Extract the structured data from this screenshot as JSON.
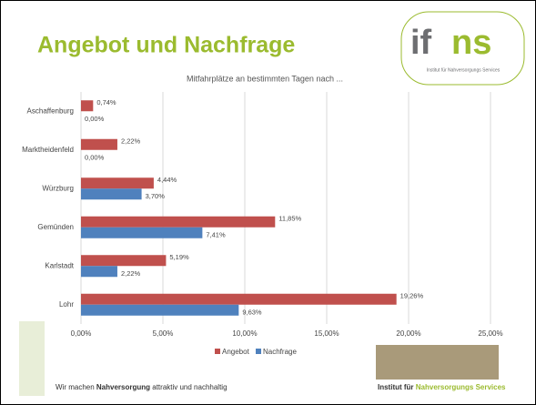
{
  "slide": {
    "title": "Angebot und Nachfrage",
    "logo": {
      "left": "if",
      "right": "ns",
      "caption": "Institut für Nahversorgungs Services"
    },
    "slogan": [
      "Wir machen ",
      "Nahversorgung",
      " attraktiv und nachhaltig"
    ],
    "institute": [
      "Institut für ",
      "Nahversorgungs Services"
    ]
  },
  "chart_data": {
    "type": "hbar",
    "title": "Mitfahrplätze an bestimmten Tagen nach ...",
    "categories": [
      "Aschaffenburg",
      "Marktheidenfeld",
      "Würzburg",
      "Gemünden",
      "Karlstadt",
      "Lohr"
    ],
    "series": [
      {
        "name": "Angebot",
        "color": "#c0504d",
        "values": [
          0.74,
          2.22,
          4.44,
          11.85,
          5.19,
          19.26
        ],
        "value_labels": [
          "0,74%",
          "2,22%",
          "4,44%",
          "11,85%",
          "5,19%",
          "19,26%"
        ]
      },
      {
        "name": "Nachfrage",
        "color": "#4f81bd",
        "values": [
          0,
          0,
          3.7,
          7.41,
          2.22,
          9.63
        ],
        "value_labels": [
          "0,00%",
          "0,00%",
          "3,70%",
          "7,41%",
          "2,22%",
          "9,63%"
        ]
      }
    ],
    "xlim": [
      0,
      25
    ],
    "xticks": [
      {
        "value": 0,
        "label": "0,00%"
      },
      {
        "value": 5,
        "label": "5,00%"
      },
      {
        "value": 10,
        "label": "10,00%"
      },
      {
        "value": 15,
        "label": "15,00%"
      },
      {
        "value": 20,
        "label": "20,00%"
      },
      {
        "value": 25,
        "label": "25,00%"
      }
    ],
    "grid": true,
    "legend": "bottom"
  }
}
